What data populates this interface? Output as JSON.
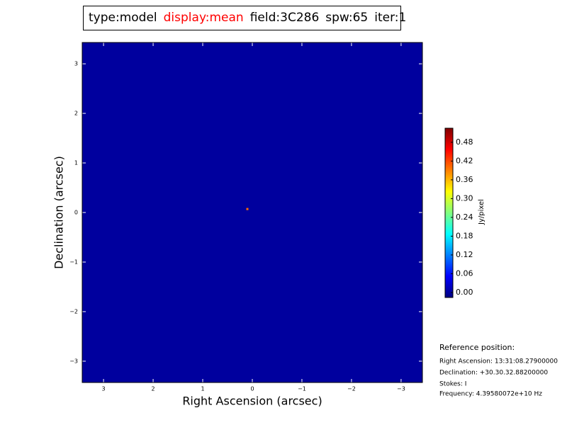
{
  "chart_data": {
    "type": "image",
    "title_parts": [
      {
        "text": "type:model",
        "color": "#000000"
      },
      {
        "text": "display:mean",
        "color": "#ff0000"
      },
      {
        "text": "field:3C286",
        "color": "#000000"
      },
      {
        "text": "spw:65",
        "color": "#000000"
      },
      {
        "text": "iter:1",
        "color": "#000000"
      }
    ],
    "x_label": "Right Ascension (arcsec)",
    "y_label": "Declination (arcsec)",
    "xlim": [
      3.43,
      -3.43
    ],
    "ylim": [
      -3.43,
      3.43
    ],
    "xticks": [
      3,
      2,
      1,
      0,
      {
        "value": -1,
        "label": "−1"
      },
      {
        "value": -2,
        "label": "−2"
      },
      {
        "value": -3,
        "label": "−3"
      }
    ],
    "yticks": [
      {
        "value": -3,
        "label": "−3"
      },
      {
        "value": -2,
        "label": "−2"
      },
      {
        "value": -1,
        "label": "−1"
      },
      0,
      1,
      2,
      3
    ],
    "background_value": 0,
    "x": [
      0.1
    ],
    "y": [
      0.07
    ],
    "values": [
      0.4
    ],
    "colormap": "jet",
    "colorbar_label": "Jy/pixel",
    "clim": [
      -0.016,
      0.525
    ],
    "colorbar_ticks": [
      {
        "value": 0,
        "label": "0.00"
      },
      {
        "value": 0.06,
        "label": "0.06"
      },
      {
        "value": 0.12,
        "label": "0.12"
      },
      {
        "value": 0.18,
        "label": "0.18"
      },
      {
        "value": 0.24,
        "label": "0.24"
      },
      {
        "value": 0.3,
        "label": "0.30"
      },
      {
        "value": 0.36,
        "label": "0.36"
      },
      {
        "value": 0.42,
        "label": "0.42"
      },
      {
        "value": 0.48,
        "label": "0.48"
      }
    ],
    "annotations": [
      "Reference position:",
      "Right Ascension: 13:31:08.27900000",
      "Declination: +30.30.32.88200000",
      "Stokes: I",
      "Frequency: 4.39580072e+10 Hz"
    ]
  }
}
